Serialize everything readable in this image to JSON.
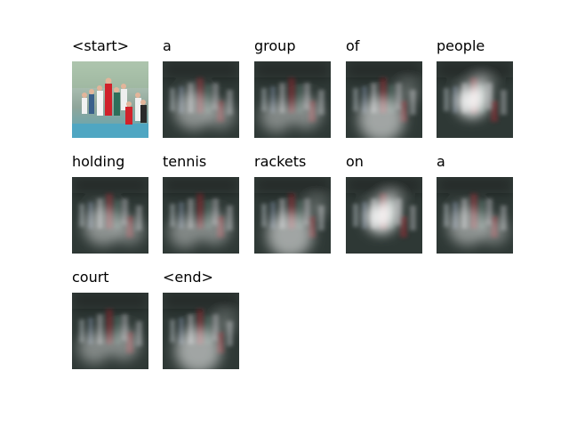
{
  "figure": {
    "cells": [
      {
        "word": "<start>",
        "image": "original-photo"
      },
      {
        "word": "a",
        "image": "attention-map"
      },
      {
        "word": "group",
        "image": "attention-map"
      },
      {
        "word": "of",
        "image": "attention-map"
      },
      {
        "word": "people",
        "image": "attention-map"
      },
      {
        "word": "holding",
        "image": "attention-map"
      },
      {
        "word": "tennis",
        "image": "attention-map"
      },
      {
        "word": "rackets",
        "image": "attention-map"
      },
      {
        "word": "on",
        "image": "attention-map"
      },
      {
        "word": "a",
        "image": "attention-map"
      },
      {
        "word": "court",
        "image": "attention-map"
      },
      {
        "word": "<end>",
        "image": "attention-map"
      }
    ]
  }
}
